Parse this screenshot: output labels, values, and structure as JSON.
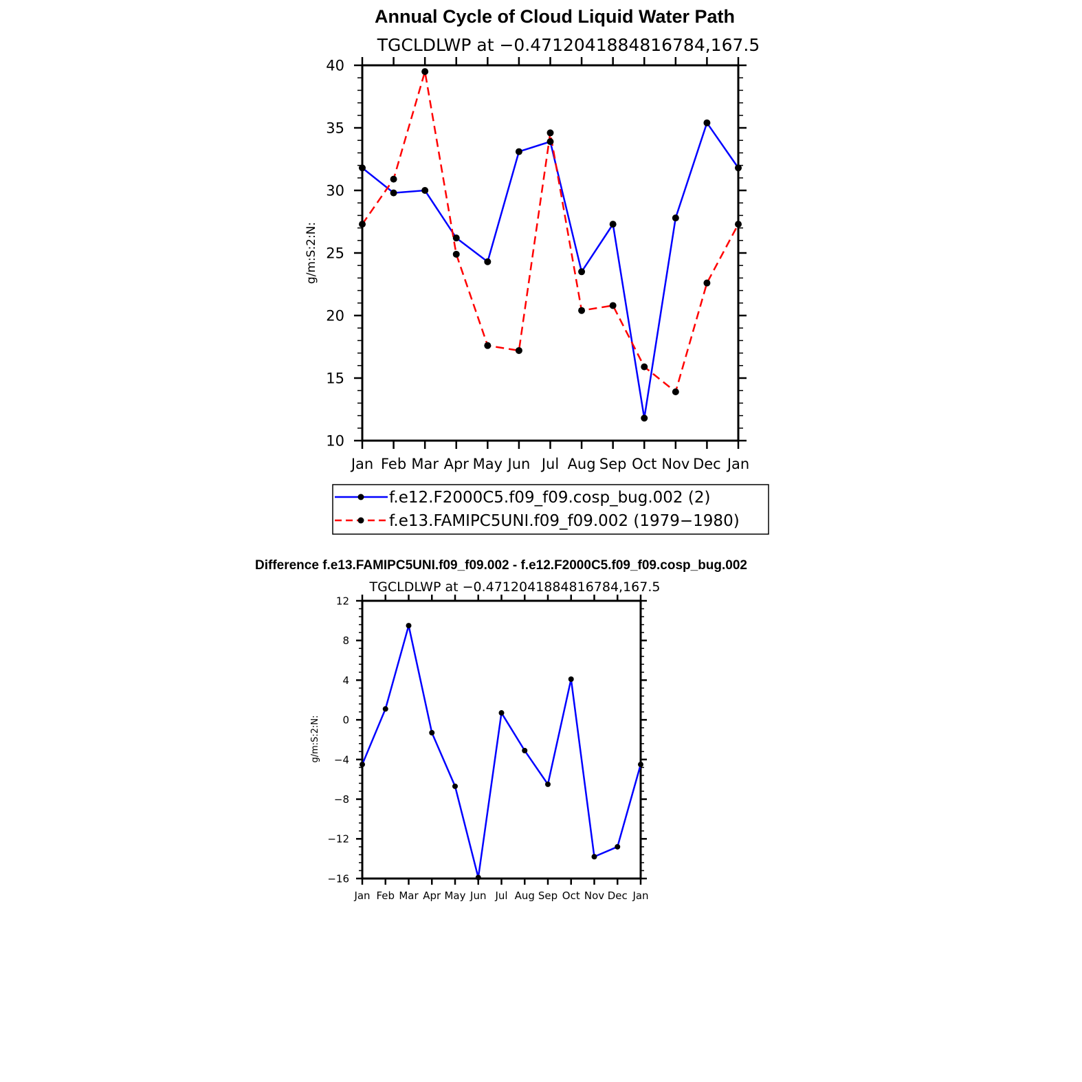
{
  "chart_data": [
    {
      "type": "line",
      "title": "Annual Cycle of Cloud Liquid Water Path",
      "subtitle": "TGCLDLWP at −0.4712041884816784,167.5",
      "ylabel": "g/m:S:2:N:",
      "xlabel": "",
      "categories": [
        "Jan",
        "Feb",
        "Mar",
        "Apr",
        "May",
        "Jun",
        "Jul",
        "Aug",
        "Sep",
        "Oct",
        "Nov",
        "Dec",
        "Jan"
      ],
      "ylim": [
        10,
        40
      ],
      "yticks": [
        10,
        15,
        20,
        25,
        30,
        35,
        40
      ],
      "ytick_labels": [
        "10",
        "15",
        "20",
        "25",
        "30",
        "35",
        "40"
      ],
      "series": [
        {
          "name": "f.e12.F2000C5.f09_f09.cosp_bug.002 (2)",
          "color": "#0000ff",
          "dash": "solid",
          "values": [
            31.8,
            29.8,
            30.0,
            26.2,
            24.3,
            33.1,
            33.9,
            23.5,
            27.3,
            11.8,
            27.8,
            35.4,
            31.8
          ]
        },
        {
          "name": "f.e13.FAMIPC5UNI.f09_f09.002 (1979−1980)",
          "color": "#ff0000",
          "dash": "dashed",
          "values": [
            27.3,
            30.9,
            39.5,
            24.9,
            17.6,
            17.2,
            34.6,
            20.4,
            20.8,
            15.9,
            13.9,
            22.6,
            27.3
          ]
        }
      ],
      "legend": "below"
    },
    {
      "type": "line",
      "title": "Difference f.e13.FAMIPC5UNI.f09_f09.002 - f.e12.F2000C5.f09_f09.cosp_bug.002",
      "subtitle": "TGCLDLWP at −0.4712041884816784,167.5",
      "ylabel": "g/m:S:2:N:",
      "xlabel": "",
      "categories": [
        "Jan",
        "Feb",
        "Mar",
        "Apr",
        "May",
        "Jun",
        "Jul",
        "Aug",
        "Sep",
        "Oct",
        "Nov",
        "Dec",
        "Jan"
      ],
      "ylim": [
        -16,
        12
      ],
      "yticks": [
        -16,
        -12,
        -8,
        -4,
        0,
        4,
        8,
        12
      ],
      "ytick_labels": [
        "−16",
        "−12",
        "−8",
        "−4",
        "0",
        "4",
        "8",
        "12"
      ],
      "series": [
        {
          "name": "difference",
          "color": "#0000ff",
          "dash": "solid",
          "values": [
            -4.5,
            1.1,
            9.5,
            -1.3,
            -6.7,
            -15.9,
            0.7,
            -3.1,
            -6.5,
            4.1,
            -13.8,
            -12.8,
            -4.5
          ]
        }
      ]
    }
  ]
}
